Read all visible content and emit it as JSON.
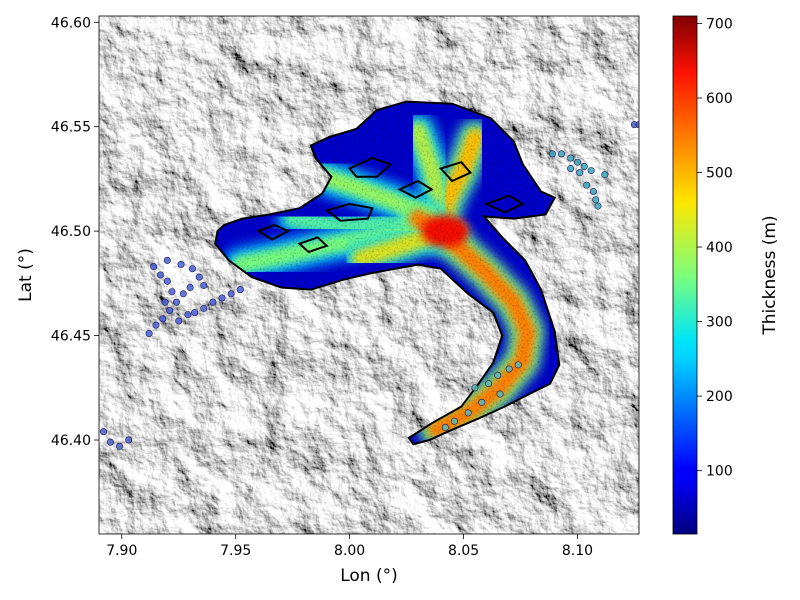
{
  "chart_data": {
    "type": "heatmap",
    "title": "",
    "xlabel": "Lon (°)",
    "ylabel": "Lat (°)",
    "xlim": [
      7.89,
      8.127
    ],
    "ylim": [
      46.355,
      46.603
    ],
    "xticks": [
      7.9,
      7.95,
      8.0,
      8.05,
      8.1
    ],
    "xtick_labels": [
      "7.90",
      "7.95",
      "8.00",
      "8.05",
      "8.10"
    ],
    "yticks": [
      46.4,
      46.45,
      46.5,
      46.55,
      46.6
    ],
    "ytick_labels": [
      "46.40",
      "46.45",
      "46.50",
      "46.55",
      "46.60"
    ],
    "background": "grayscale hillshade terrain",
    "colormap": "jet",
    "colorbar": {
      "label": "Thickness (m)",
      "vmin": 15,
      "vmax": 710,
      "ticks": [
        100,
        200,
        300,
        400,
        500,
        600,
        700
      ],
      "tick_labels": [
        "100",
        "200",
        "300",
        "400",
        "500",
        "600",
        "700"
      ]
    },
    "glacier": {
      "outline_color": "#000000",
      "outline": [
        [
          7.945,
          46.503
        ],
        [
          7.953,
          46.506
        ],
        [
          7.965,
          46.508
        ],
        [
          7.978,
          46.511
        ],
        [
          7.988,
          46.518
        ],
        [
          7.992,
          46.526
        ],
        [
          7.985,
          46.535
        ],
        [
          7.983,
          46.541
        ],
        [
          7.991,
          46.545
        ],
        [
          8.003,
          46.549
        ],
        [
          8.012,
          46.558
        ],
        [
          8.025,
          46.562
        ],
        [
          8.045,
          46.561
        ],
        [
          8.062,
          46.554
        ],
        [
          8.072,
          46.543
        ],
        [
          8.076,
          46.532
        ],
        [
          8.084,
          46.519
        ],
        [
          8.09,
          46.516
        ],
        [
          8.086,
          46.508
        ],
        [
          8.072,
          46.506
        ],
        [
          8.059,
          46.507
        ],
        [
          8.067,
          46.497
        ],
        [
          8.077,
          46.486
        ],
        [
          8.084,
          46.472
        ],
        [
          8.09,
          46.452
        ],
        [
          8.092,
          46.436
        ],
        [
          8.088,
          46.427
        ],
        [
          8.077,
          46.421
        ],
        [
          8.068,
          46.416
        ],
        [
          8.056,
          46.41
        ],
        [
          8.043,
          46.404
        ],
        [
          8.035,
          46.4
        ],
        [
          8.028,
          46.398
        ],
        [
          8.026,
          46.401
        ],
        [
          8.036,
          46.408
        ],
        [
          8.049,
          46.416
        ],
        [
          8.056,
          46.426
        ],
        [
          8.063,
          46.437
        ],
        [
          8.067,
          46.45
        ],
        [
          8.063,
          46.461
        ],
        [
          8.052,
          46.47
        ],
        [
          8.04,
          46.482
        ],
        [
          8.03,
          46.484
        ],
        [
          8.02,
          46.482
        ],
        [
          8.01,
          46.48
        ],
        [
          7.998,
          46.477
        ],
        [
          7.983,
          46.472
        ],
        [
          7.97,
          46.473
        ],
        [
          7.957,
          46.478
        ],
        [
          7.947,
          46.486
        ],
        [
          7.941,
          46.494
        ],
        [
          7.942,
          46.5
        ]
      ],
      "holes": [
        [
          [
            7.99,
            46.51
          ],
          [
            8.0,
            46.513
          ],
          [
            8.01,
            46.511
          ],
          [
            8.008,
            46.506
          ],
          [
            7.996,
            46.505
          ]
        ],
        [
          [
            8.0,
            46.53
          ],
          [
            8.01,
            46.535
          ],
          [
            8.018,
            46.532
          ],
          [
            8.012,
            46.526
          ],
          [
            8.003,
            46.526
          ]
        ],
        [
          [
            8.022,
            46.52
          ],
          [
            8.03,
            46.524
          ],
          [
            8.036,
            46.52
          ],
          [
            8.029,
            46.516
          ]
        ],
        [
          [
            8.04,
            46.53
          ],
          [
            8.049,
            46.533
          ],
          [
            8.053,
            46.528
          ],
          [
            8.045,
            46.524
          ]
        ],
        [
          [
            8.06,
            46.513
          ],
          [
            8.07,
            46.517
          ],
          [
            8.076,
            46.513
          ],
          [
            8.068,
            46.509
          ]
        ],
        [
          [
            7.96,
            46.5
          ],
          [
            7.967,
            46.503
          ],
          [
            7.973,
            46.5
          ],
          [
            7.966,
            46.496
          ]
        ],
        [
          [
            7.978,
            46.494
          ],
          [
            7.986,
            46.497
          ],
          [
            7.99,
            46.493
          ],
          [
            7.982,
            46.49
          ]
        ]
      ],
      "thickness_branches": [
        {
          "path": [
            [
              7.952,
              46.484
            ],
            [
              7.97,
              46.488
            ],
            [
              7.99,
              46.493
            ],
            [
              8.01,
              46.497
            ],
            [
              8.03,
              46.501
            ],
            [
              8.045,
              46.497
            ]
          ],
          "peak_thickness": 420
        },
        {
          "path": [
            [
              8.055,
              46.545
            ],
            [
              8.05,
              46.53
            ],
            [
              8.043,
              46.515
            ],
            [
              8.04,
              46.502
            ]
          ],
          "peak_thickness": 580
        },
        {
          "path": [
            [
              8.03,
              46.548
            ],
            [
              8.036,
              46.53
            ],
            [
              8.04,
              46.51
            ]
          ],
          "peak_thickness": 480
        },
        {
          "path": [
            [
              7.983,
              46.528
            ],
            [
              8.0,
              46.522
            ],
            [
              8.02,
              46.514
            ],
            [
              8.035,
              46.506
            ]
          ],
          "peak_thickness": 450
        },
        {
          "path": [
            [
              7.975,
              46.506
            ],
            [
              7.995,
              46.502
            ],
            [
              8.015,
              46.503
            ],
            [
              8.035,
              46.503
            ]
          ],
          "peak_thickness": 380
        },
        {
          "path": [
            [
              8.03,
              46.506
            ],
            [
              8.045,
              46.495
            ],
            [
              8.06,
              46.48
            ],
            [
              8.072,
              46.466
            ],
            [
              8.078,
              46.452
            ],
            [
              8.076,
              46.438
            ],
            [
              8.066,
              46.425
            ],
            [
              8.052,
              46.413
            ],
            [
              8.038,
              46.405
            ]
          ],
          "peak_thickness": 640
        },
        {
          "path": [
            [
              8.005,
              46.487
            ],
            [
              8.02,
              46.492
            ],
            [
              8.036,
              46.498
            ]
          ],
          "peak_thickness": 520
        }
      ],
      "max_thickness_location": [
        8.042,
        46.5
      ]
    },
    "scatter_clusters": [
      {
        "name": "",
        "color": "#4a5fd4",
        "points": [
          [
            7.912,
            46.451
          ],
          [
            7.915,
            46.455
          ],
          [
            7.918,
            46.458
          ],
          [
            7.921,
            46.462
          ],
          [
            7.924,
            46.466
          ],
          [
            7.927,
            46.47
          ],
          [
            7.93,
            46.473
          ],
          [
            7.92,
            46.476
          ],
          [
            7.917,
            46.479
          ],
          [
            7.914,
            46.483
          ],
          [
            7.92,
            46.486
          ],
          [
            7.926,
            46.484
          ],
          [
            7.931,
            46.482
          ],
          [
            7.934,
            46.478
          ],
          [
            7.936,
            46.474
          ],
          [
            7.932,
            46.461
          ],
          [
            7.936,
            46.463
          ],
          [
            7.94,
            46.466
          ],
          [
            7.944,
            46.468
          ],
          [
            7.948,
            46.47
          ],
          [
            7.952,
            46.472
          ],
          [
            7.925,
            46.457
          ],
          [
            7.929,
            46.46
          ],
          [
            7.922,
            46.471
          ],
          [
            7.919,
            46.466
          ]
        ]
      },
      {
        "name": "",
        "color": "#3aa6b8",
        "points": [
          [
            8.089,
            46.537
          ],
          [
            8.093,
            46.537
          ],
          [
            8.097,
            46.535
          ],
          [
            8.1,
            46.533
          ],
          [
            8.103,
            46.531
          ],
          [
            8.106,
            46.529
          ],
          [
            8.101,
            46.528
          ],
          [
            8.097,
            46.53
          ],
          [
            8.104,
            46.522
          ],
          [
            8.107,
            46.519
          ],
          [
            8.108,
            46.515
          ],
          [
            8.109,
            46.512
          ],
          [
            8.112,
            46.527
          ]
        ]
      },
      {
        "name": "",
        "color": "#5fb7b0",
        "points": [
          [
            8.061,
            46.427
          ],
          [
            8.065,
            46.431
          ],
          [
            8.07,
            46.434
          ],
          [
            8.074,
            46.436
          ],
          [
            8.066,
            46.422
          ],
          [
            8.058,
            46.418
          ],
          [
            8.052,
            46.413
          ],
          [
            8.046,
            46.409
          ],
          [
            8.042,
            46.406
          ],
          [
            8.055,
            46.425
          ]
        ]
      },
      {
        "name": "",
        "color": "#5060c8",
        "points": [
          [
            7.892,
            46.404
          ],
          [
            7.895,
            46.399
          ],
          [
            7.899,
            46.397
          ],
          [
            7.903,
            46.4
          ]
        ]
      },
      {
        "name": "",
        "color": "#5060c8",
        "points": [
          [
            8.125,
            46.551
          ],
          [
            8.127,
            46.551
          ]
        ]
      }
    ]
  }
}
